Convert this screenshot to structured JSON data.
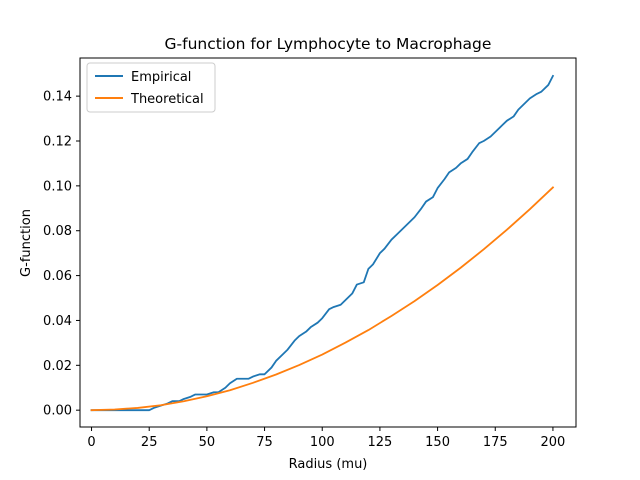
{
  "chart_data": {
    "type": "line",
    "title": "G-function for Lymphocyte to Macrophage",
    "xlabel": "Radius (mu)",
    "ylabel": "G-function",
    "xlim": [
      -5,
      210
    ],
    "ylim": [
      -0.0075,
      0.157
    ],
    "xticks": [
      0,
      25,
      50,
      75,
      100,
      125,
      150,
      175,
      200
    ],
    "xtick_labels": [
      "0",
      "25",
      "50",
      "75",
      "100",
      "125",
      "150",
      "175",
      "200"
    ],
    "yticks": [
      0.0,
      0.02,
      0.04,
      0.06,
      0.08,
      0.1,
      0.12,
      0.14
    ],
    "ytick_labels": [
      "0.00",
      "0.02",
      "0.04",
      "0.06",
      "0.08",
      "0.10",
      "0.12",
      "0.14"
    ],
    "grid": false,
    "legend_position": "top-left",
    "series": [
      {
        "name": "Empirical",
        "color": "#1f77b4",
        "x": [
          0,
          5,
          10,
          15,
          20,
          25,
          27,
          30,
          33,
          35,
          38,
          40,
          43,
          45,
          48,
          50,
          53,
          55,
          58,
          60,
          63,
          65,
          68,
          70,
          73,
          75,
          78,
          80,
          83,
          85,
          88,
          90,
          93,
          95,
          98,
          100,
          103,
          105,
          108,
          110,
          113,
          115,
          118,
          120,
          122,
          125,
          127,
          130,
          133,
          135,
          138,
          140,
          143,
          145,
          148,
          150,
          153,
          155,
          158,
          160,
          163,
          165,
          168,
          170,
          173,
          175,
          178,
          180,
          183,
          185,
          188,
          190,
          193,
          195,
          198,
          200
        ],
        "y": [
          0.0,
          0.0,
          0.0,
          0.0,
          0.0,
          0.0,
          0.001,
          0.002,
          0.003,
          0.004,
          0.004,
          0.005,
          0.006,
          0.007,
          0.007,
          0.007,
          0.008,
          0.008,
          0.01,
          0.012,
          0.014,
          0.014,
          0.014,
          0.015,
          0.016,
          0.016,
          0.019,
          0.022,
          0.025,
          0.027,
          0.031,
          0.033,
          0.035,
          0.037,
          0.039,
          0.041,
          0.045,
          0.046,
          0.047,
          0.049,
          0.052,
          0.056,
          0.057,
          0.063,
          0.065,
          0.07,
          0.072,
          0.076,
          0.079,
          0.081,
          0.084,
          0.086,
          0.09,
          0.093,
          0.095,
          0.099,
          0.103,
          0.106,
          0.108,
          0.11,
          0.112,
          0.115,
          0.119,
          0.12,
          0.122,
          0.124,
          0.127,
          0.129,
          0.131,
          0.134,
          0.137,
          0.139,
          0.141,
          0.142,
          0.145,
          0.149
        ]
      },
      {
        "name": "Theoretical",
        "color": "#ff7f0e",
        "x": [
          0,
          10,
          20,
          30,
          40,
          50,
          60,
          70,
          80,
          90,
          100,
          110,
          120,
          130,
          140,
          150,
          160,
          170,
          180,
          190,
          200
        ],
        "y": [
          0.0,
          0.0003,
          0.001,
          0.0022,
          0.004,
          0.0062,
          0.0089,
          0.0122,
          0.0159,
          0.0201,
          0.0248,
          0.0301,
          0.0357,
          0.042,
          0.0486,
          0.0558,
          0.0635,
          0.0717,
          0.0804,
          0.0896,
          0.0993
        ]
      }
    ]
  }
}
